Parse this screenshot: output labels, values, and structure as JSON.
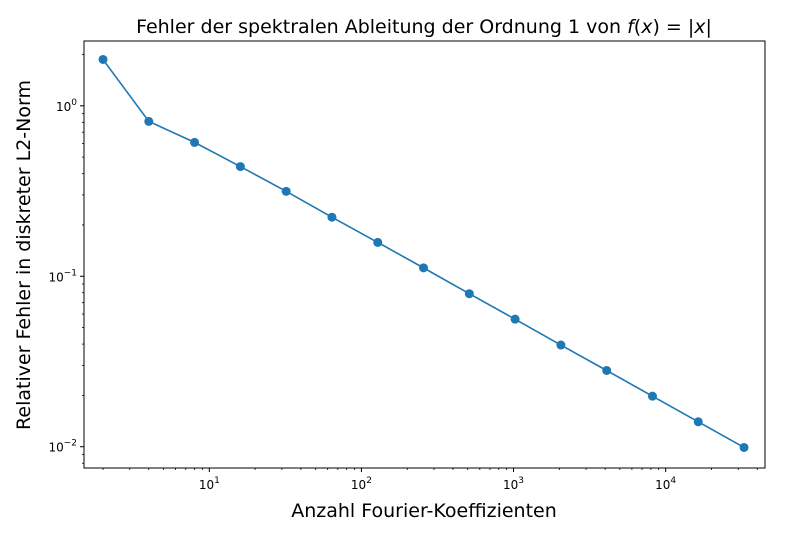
{
  "chart_data": {
    "type": "line",
    "title_prefix": "Fehler der spektralen Ableitung der Ordnung 1 von ",
    "title_math_f": "f",
    "title_math_paren_open": "(",
    "title_math_x": "x",
    "title_math_paren_close": ")",
    "title_math_eq": " = |",
    "title_math_abs_x": "x",
    "title_math_bar": "|",
    "xlabel": "Anzahl Fourier-Koeffizienten",
    "ylabel": "Relativer Fehler in diskreter L2-Norm",
    "xscale": "log",
    "yscale": "log",
    "xlim": [
      1.5,
      45000
    ],
    "ylim": [
      0.0075,
      2.4
    ],
    "grid": false,
    "x_ticks": [
      {
        "base": "10",
        "exp": "1",
        "value": 10
      },
      {
        "base": "10",
        "exp": "2",
        "value": 100
      },
      {
        "base": "10",
        "exp": "3",
        "value": 1000
      },
      {
        "base": "10",
        "exp": "4",
        "value": 10000
      }
    ],
    "y_ticks": [
      {
        "base": "10",
        "exp": "0",
        "value": 1
      },
      {
        "base": "10",
        "exp": "−1",
        "value": 0.1
      },
      {
        "base": "10",
        "exp": "−2",
        "value": 0.01
      }
    ],
    "series": [
      {
        "color": "#1f77b4",
        "marker": "circle",
        "x": [
          2,
          4,
          8,
          16,
          32,
          64,
          128,
          256,
          512,
          1024,
          2048,
          4096,
          8192,
          16384,
          32768
        ],
        "y": [
          1.87,
          0.81,
          0.61,
          0.44,
          0.315,
          0.222,
          0.158,
          0.112,
          0.079,
          0.056,
          0.0395,
          0.028,
          0.0198,
          0.014,
          0.0099
        ]
      }
    ]
  }
}
